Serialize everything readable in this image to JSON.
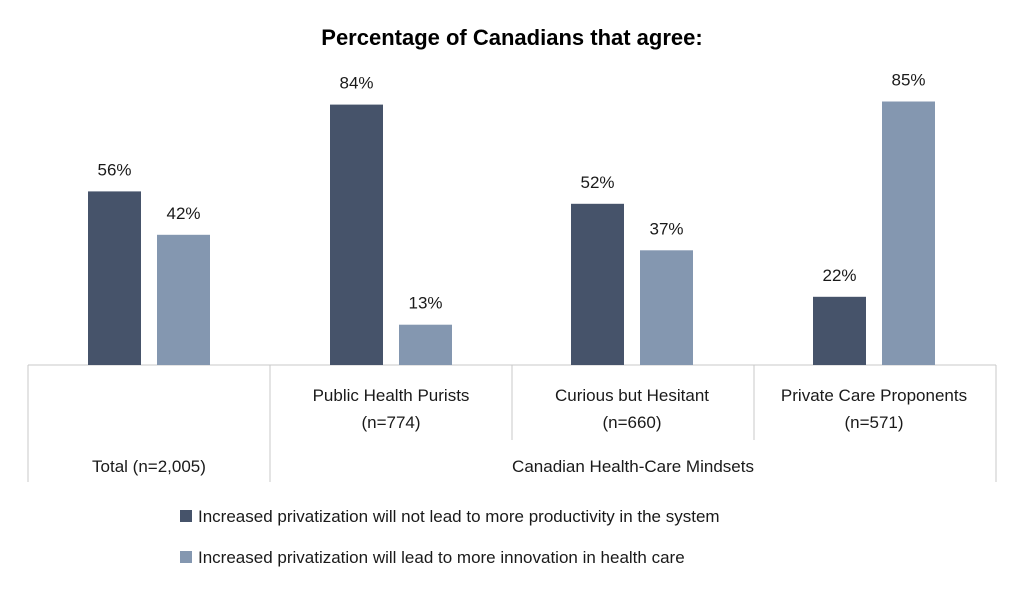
{
  "colors": {
    "series_dark": "#46536a",
    "series_light": "#8497b0",
    "axis": "#c8c8c8"
  },
  "chart_data": {
    "type": "bar",
    "title": "Percentage of Canadians that agree:",
    "categories": [
      "Total (n=2,005)",
      "Public Health Purists (n=774)",
      "Curious but Hesitant (n=660)",
      "Private Care Proponents (n=571)"
    ],
    "category_lines": [
      [
        "Total (n=2,005)"
      ],
      [
        "Public Health Purists",
        "(n=774)"
      ],
      [
        "Curious but Hesitant",
        "(n=660)"
      ],
      [
        "Private Care Proponents",
        "(n=571)"
      ]
    ],
    "group_label": "Canadian Health-Care Mindsets",
    "series": [
      {
        "name": "Increased privatization will not lead to more productivity in the system",
        "values": [
          56,
          84,
          52,
          22
        ],
        "labels": [
          "56%",
          "84%",
          "52%",
          "22%"
        ]
      },
      {
        "name": "Increased privatization will lead to more innovation in health care",
        "values": [
          42,
          13,
          37,
          85
        ],
        "labels": [
          "42%",
          "13%",
          "37%",
          "85%"
        ]
      }
    ],
    "ylim": [
      0,
      100
    ],
    "grid": false,
    "legend_position": "bottom"
  }
}
